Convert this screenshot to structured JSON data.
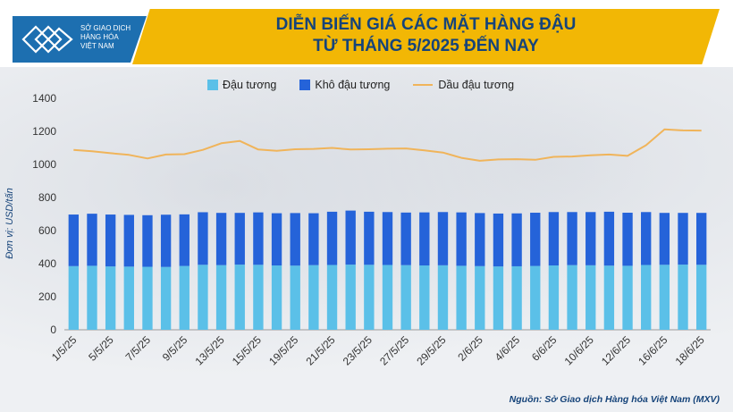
{
  "header": {
    "logo_lines": [
      "Sở Giao dịch",
      "Hàng hóa",
      "Việt Nam"
    ],
    "title_line1": "DIỄN BIẾN GIÁ CÁC MẶT HÀNG ĐẬU",
    "title_line2": "TỪ THÁNG 5/2025 ĐẾN NAY"
  },
  "source": "Nguồn: Sở Giao dịch Hàng hóa Việt Nam (MXV)",
  "chart_data": {
    "type": "bar",
    "stacked": true,
    "ylabel": "Đơn vị: USD/tấn",
    "ylim": [
      0,
      1400
    ],
    "yticks": [
      0,
      200,
      400,
      600,
      800,
      1000,
      1200,
      1400
    ],
    "grid": false,
    "legend_position": "top-center",
    "x_tick_labels": [
      "1/5/25",
      "5/5/25",
      "7/5/25",
      "9/5/25",
      "13/5/25",
      "15/5/25",
      "19/5/25",
      "21/5/25",
      "23/5/25",
      "27/5/25",
      "29/5/25",
      "2/6/25",
      "4/6/25",
      "6/6/25",
      "10/6/25",
      "12/6/25",
      "16/6/25",
      "18/6/25"
    ],
    "n_points": 35,
    "series": [
      {
        "name": "Đậu tương",
        "kind": "bar",
        "color": "#5bc0e8",
        "values": [
          385,
          387,
          383,
          382,
          381,
          380,
          386,
          393,
          391,
          394,
          393,
          389,
          388,
          391,
          392,
          394,
          393,
          392,
          391,
          389,
          390,
          387,
          385,
          383,
          384,
          386,
          389,
          391,
          390,
          388,
          387,
          392,
          393,
          394,
          393
        ]
      },
      {
        "name": "Khô đậu tương",
        "kind": "bar",
        "color": "#2563d9",
        "values": [
          312,
          315,
          314,
          313,
          312,
          316,
          312,
          318,
          316,
          313,
          317,
          316,
          318,
          314,
          322,
          327,
          321,
          320,
          318,
          321,
          322,
          323,
          321,
          320,
          320,
          322,
          323,
          321,
          322,
          326,
          321,
          320,
          314,
          313,
          314
        ]
      },
      {
        "name": "Dầu đậu tương",
        "kind": "line",
        "color": "#f0b45a",
        "values": [
          1088,
          1080,
          1068,
          1058,
          1036,
          1060,
          1062,
          1088,
          1128,
          1142,
          1090,
          1082,
          1092,
          1094,
          1100,
          1090,
          1092,
          1095,
          1097,
          1085,
          1072,
          1040,
          1022,
          1030,
          1032,
          1028,
          1046,
          1048,
          1055,
          1060,
          1052,
          1116,
          1212,
          1206,
          1205
        ]
      }
    ]
  }
}
